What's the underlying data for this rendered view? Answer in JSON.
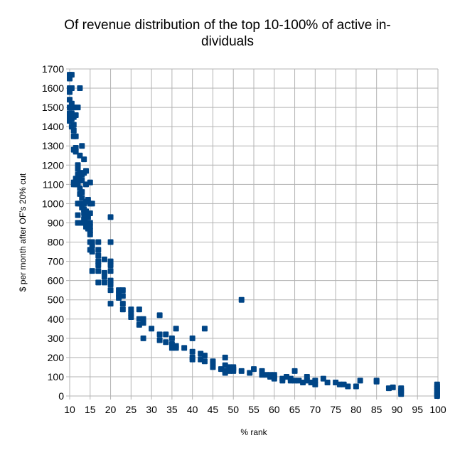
{
  "chart_data": {
    "type": "scatter",
    "title_lines": [
      "Of revenue distribution of the top 10-100% of active in-",
      "dividuals"
    ],
    "xlabel": "% rank",
    "ylabel": "$ per month after OF's 20% cut",
    "xlim": [
      10,
      100
    ],
    "ylim": [
      0,
      1700
    ],
    "x_ticks": [
      10,
      15,
      20,
      25,
      30,
      35,
      40,
      45,
      50,
      55,
      60,
      65,
      70,
      75,
      80,
      85,
      90,
      95,
      100
    ],
    "y_ticks": [
      0,
      100,
      200,
      300,
      400,
      500,
      600,
      700,
      800,
      900,
      1000,
      1100,
      1200,
      1300,
      1400,
      1500,
      1600,
      1700
    ],
    "grid": true,
    "legend": "none",
    "marker_color": "#004586",
    "points": [
      [
        10,
        1670
      ],
      [
        10,
        1660
      ],
      [
        10,
        1650
      ],
      [
        10,
        1600
      ],
      [
        10,
        1580
      ],
      [
        10,
        1540
      ],
      [
        10,
        1500
      ],
      [
        10,
        1470
      ],
      [
        10,
        1460
      ],
      [
        10,
        1450
      ],
      [
        10,
        1430
      ],
      [
        10.5,
        1670
      ],
      [
        10.5,
        1600
      ],
      [
        10.5,
        1520
      ],
      [
        10.5,
        1470
      ],
      [
        10.5,
        1440
      ],
      [
        10.5,
        1400
      ],
      [
        11,
        1500
      ],
      [
        11,
        1450
      ],
      [
        11,
        1410
      ],
      [
        11,
        1380
      ],
      [
        11,
        1350
      ],
      [
        11,
        1280
      ],
      [
        11,
        1100
      ],
      [
        11,
        1110
      ],
      [
        11.5,
        1460
      ],
      [
        11.5,
        1350
      ],
      [
        11.5,
        1290
      ],
      [
        11.5,
        1270
      ],
      [
        11.5,
        1130
      ],
      [
        11.5,
        1100
      ],
      [
        12,
        1500
      ],
      [
        12,
        1200
      ],
      [
        12,
        1180
      ],
      [
        12,
        1150
      ],
      [
        12,
        1120
      ],
      [
        12,
        1100
      ],
      [
        12,
        1000
      ],
      [
        12,
        940
      ],
      [
        12,
        900
      ],
      [
        12.5,
        1600
      ],
      [
        12.5,
        1250
      ],
      [
        12.5,
        1160
      ],
      [
        12.5,
        1140
      ],
      [
        12.5,
        1080
      ],
      [
        12.5,
        1050
      ],
      [
        12.5,
        1000
      ],
      [
        12.5,
        900
      ],
      [
        13,
        1300
      ],
      [
        13,
        1150
      ],
      [
        13,
        1120
      ],
      [
        13,
        1060
      ],
      [
        13,
        1030
      ],
      [
        13,
        980
      ],
      [
        13.5,
        1230
      ],
      [
        13.5,
        1160
      ],
      [
        13.5,
        1000
      ],
      [
        13.5,
        970
      ],
      [
        13.5,
        950
      ],
      [
        13.5,
        920
      ],
      [
        13.5,
        900
      ],
      [
        14,
        1170
      ],
      [
        14,
        1100
      ],
      [
        14,
        1010
      ],
      [
        14,
        960
      ],
      [
        14,
        930
      ],
      [
        14,
        900
      ],
      [
        14,
        880
      ],
      [
        14.5,
        1020
      ],
      [
        14.5,
        950
      ],
      [
        14.5,
        930
      ],
      [
        14.5,
        890
      ],
      [
        14.5,
        870
      ],
      [
        15,
        1110
      ],
      [
        15,
        1000
      ],
      [
        15,
        950
      ],
      [
        15,
        900
      ],
      [
        15,
        880
      ],
      [
        15,
        860
      ],
      [
        15,
        840
      ],
      [
        15,
        800
      ],
      [
        15,
        760
      ],
      [
        15.5,
        1000
      ],
      [
        15.5,
        800
      ],
      [
        15.5,
        780
      ],
      [
        15.5,
        750
      ],
      [
        15.5,
        650
      ],
      [
        17,
        800
      ],
      [
        17,
        760
      ],
      [
        17,
        730
      ],
      [
        17,
        700
      ],
      [
        17,
        680
      ],
      [
        17,
        650
      ],
      [
        17,
        590
      ],
      [
        18.5,
        710
      ],
      [
        18.5,
        640
      ],
      [
        18.5,
        620
      ],
      [
        18.5,
        590
      ],
      [
        20,
        930
      ],
      [
        20,
        800
      ],
      [
        20,
        700
      ],
      [
        20,
        680
      ],
      [
        20,
        650
      ],
      [
        20,
        600
      ],
      [
        20,
        580
      ],
      [
        20,
        550
      ],
      [
        20,
        480
      ],
      [
        22,
        550
      ],
      [
        22,
        530
      ],
      [
        22,
        510
      ],
      [
        23,
        550
      ],
      [
        23,
        520
      ],
      [
        23,
        480
      ],
      [
        23,
        450
      ],
      [
        25,
        450
      ],
      [
        25,
        430
      ],
      [
        25,
        410
      ],
      [
        27,
        450
      ],
      [
        27,
        400
      ],
      [
        27,
        370
      ],
      [
        28,
        400
      ],
      [
        28,
        380
      ],
      [
        28,
        300
      ],
      [
        30,
        350
      ],
      [
        32,
        420
      ],
      [
        32,
        320
      ],
      [
        32,
        290
      ],
      [
        33.5,
        320
      ],
      [
        33.5,
        280
      ],
      [
        35,
        300
      ],
      [
        35,
        270
      ],
      [
        35,
        250
      ],
      [
        36,
        350
      ],
      [
        36,
        260
      ],
      [
        36,
        250
      ],
      [
        38,
        250
      ],
      [
        40,
        300
      ],
      [
        40,
        230
      ],
      [
        40,
        200
      ],
      [
        40,
        190
      ],
      [
        42,
        190
      ],
      [
        42,
        220
      ],
      [
        43,
        350
      ],
      [
        43,
        210
      ],
      [
        43,
        180
      ],
      [
        45,
        170
      ],
      [
        45,
        150
      ],
      [
        45,
        180
      ],
      [
        47,
        140
      ],
      [
        48,
        200
      ],
      [
        48,
        160
      ],
      [
        48,
        130
      ],
      [
        48,
        120
      ],
      [
        49,
        150
      ],
      [
        49,
        140
      ],
      [
        49,
        130
      ],
      [
        50,
        150
      ],
      [
        50,
        140
      ],
      [
        50,
        130
      ],
      [
        52,
        500
      ],
      [
        52,
        130
      ],
      [
        54,
        120
      ],
      [
        55,
        140
      ],
      [
        57,
        130
      ],
      [
        57,
        120
      ],
      [
        57,
        110
      ],
      [
        58,
        110
      ],
      [
        59,
        100
      ],
      [
        59,
        110
      ],
      [
        60,
        100
      ],
      [
        60,
        90
      ],
      [
        60,
        110
      ],
      [
        62,
        90
      ],
      [
        62,
        80
      ],
      [
        63,
        100
      ],
      [
        64,
        90
      ],
      [
        64,
        80
      ],
      [
        65,
        130
      ],
      [
        65,
        80
      ],
      [
        66,
        80
      ],
      [
        67,
        70
      ],
      [
        68,
        100
      ],
      [
        68,
        80
      ],
      [
        69,
        70
      ],
      [
        70,
        60
      ],
      [
        70,
        80
      ],
      [
        72,
        90
      ],
      [
        73,
        70
      ],
      [
        75,
        70
      ],
      [
        76,
        60
      ],
      [
        77,
        60
      ],
      [
        78,
        50
      ],
      [
        80,
        50
      ],
      [
        81,
        80
      ],
      [
        85,
        80
      ],
      [
        85,
        75
      ],
      [
        88,
        40
      ],
      [
        89,
        45
      ],
      [
        91,
        30
      ],
      [
        91,
        20
      ],
      [
        91,
        10
      ],
      [
        91,
        40
      ],
      [
        99.8,
        60
      ],
      [
        99.8,
        50
      ],
      [
        99.8,
        40
      ],
      [
        99.8,
        30
      ],
      [
        99.8,
        20
      ],
      [
        99.8,
        10
      ],
      [
        99.8,
        0
      ],
      [
        99.8,
        5
      ]
    ]
  }
}
